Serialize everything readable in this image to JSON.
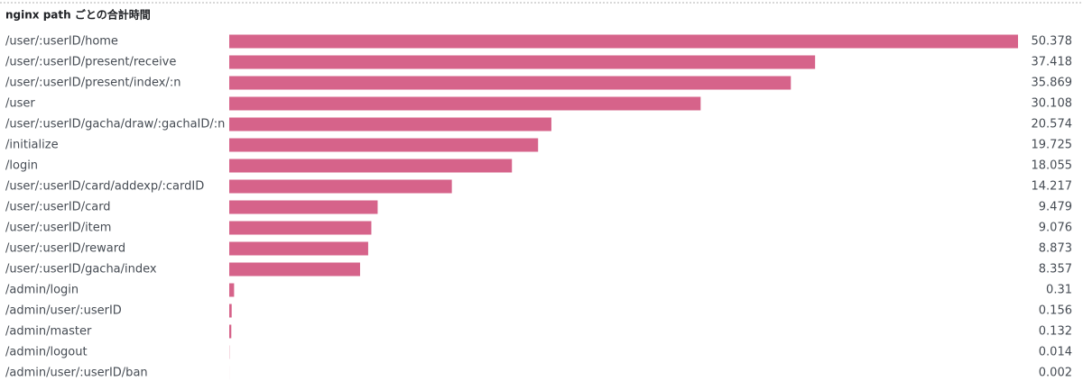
{
  "chart_data": {
    "type": "bar",
    "orientation": "horizontal",
    "title": "nginx path ごとの合計時間",
    "categories": [
      "/user/:userID/home",
      "/user/:userID/present/receive",
      "/user/:userID/present/index/:n",
      "/user",
      "/user/:userID/gacha/draw/:gachaID/:n",
      "/initialize",
      "/login",
      "/user/:userID/card/addexp/:cardID",
      "/user/:userID/card",
      "/user/:userID/item",
      "/user/:userID/reward",
      "/user/:userID/gacha/index",
      "/admin/login",
      "/admin/user/:userID",
      "/admin/master",
      "/admin/logout",
      "/admin/user/:userID/ban"
    ],
    "values": [
      50.378,
      37.418,
      35.869,
      30.108,
      20.574,
      19.725,
      18.055,
      14.217,
      9.479,
      9.076,
      8.873,
      8.357,
      0.31,
      0.156,
      0.132,
      0.014,
      0.002
    ],
    "color": "#d6638a"
  }
}
